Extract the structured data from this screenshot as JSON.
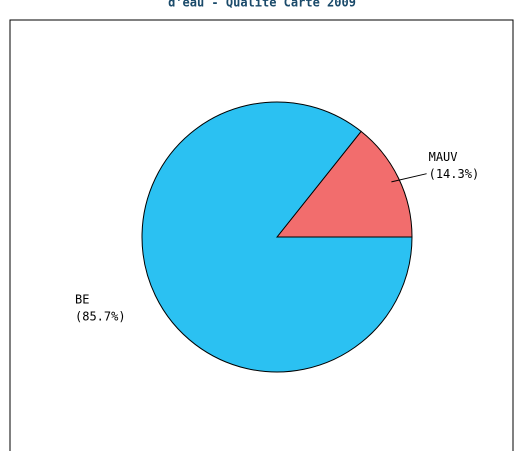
{
  "chart_data": {
    "type": "pie",
    "title": "d'eau - Qualité Carte 2009",
    "categories": [
      "MAUV",
      "BE"
    ],
    "values": [
      14.3,
      85.7
    ],
    "value_labels": [
      "(14.3%)",
      "(85.7%)"
    ],
    "colors": [
      "#f26d6d",
      "#2bc1f2"
    ]
  }
}
